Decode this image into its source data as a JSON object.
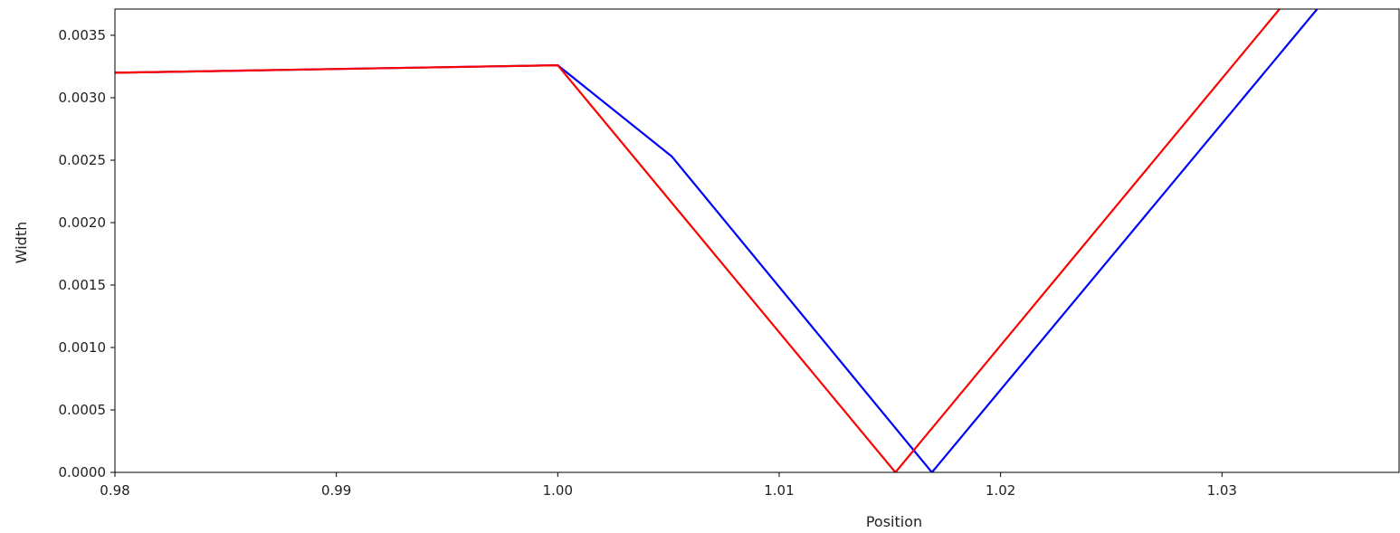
{
  "chart_data": {
    "type": "line",
    "title": "",
    "xlabel": "Position",
    "ylabel": "Width",
    "xlim": [
      0.98,
      1.038
    ],
    "ylim": [
      0.0,
      0.00371
    ],
    "x_ticks": [
      0.98,
      0.99,
      1.0,
      1.01,
      1.02,
      1.03
    ],
    "x_tick_labels": [
      "0.98",
      "0.99",
      "1.00",
      "1.01",
      "1.02",
      "1.03"
    ],
    "y_ticks": [
      0.0,
      0.0005,
      0.001,
      0.0015,
      0.002,
      0.0025,
      0.003,
      0.0035
    ],
    "y_tick_labels": [
      "0.0000",
      "0.0005",
      "0.0010",
      "0.0015",
      "0.0020",
      "0.0025",
      "0.0030",
      "0.0035"
    ],
    "grid": false,
    "legend": false,
    "series": [
      {
        "color": "#0000ff",
        "points": [
          [
            0.98,
            0.0032
          ],
          [
            1.0,
            0.00326
          ],
          [
            1.00515,
            0.00253
          ],
          [
            1.0169,
            0.0
          ],
          [
            1.0343,
            0.00371
          ]
        ]
      },
      {
        "color": "#ff0000",
        "points": [
          [
            0.98,
            0.0032
          ],
          [
            1.0,
            0.00326
          ],
          [
            1.01525,
            0.0
          ],
          [
            1.0326,
            0.00371
          ]
        ]
      }
    ]
  }
}
